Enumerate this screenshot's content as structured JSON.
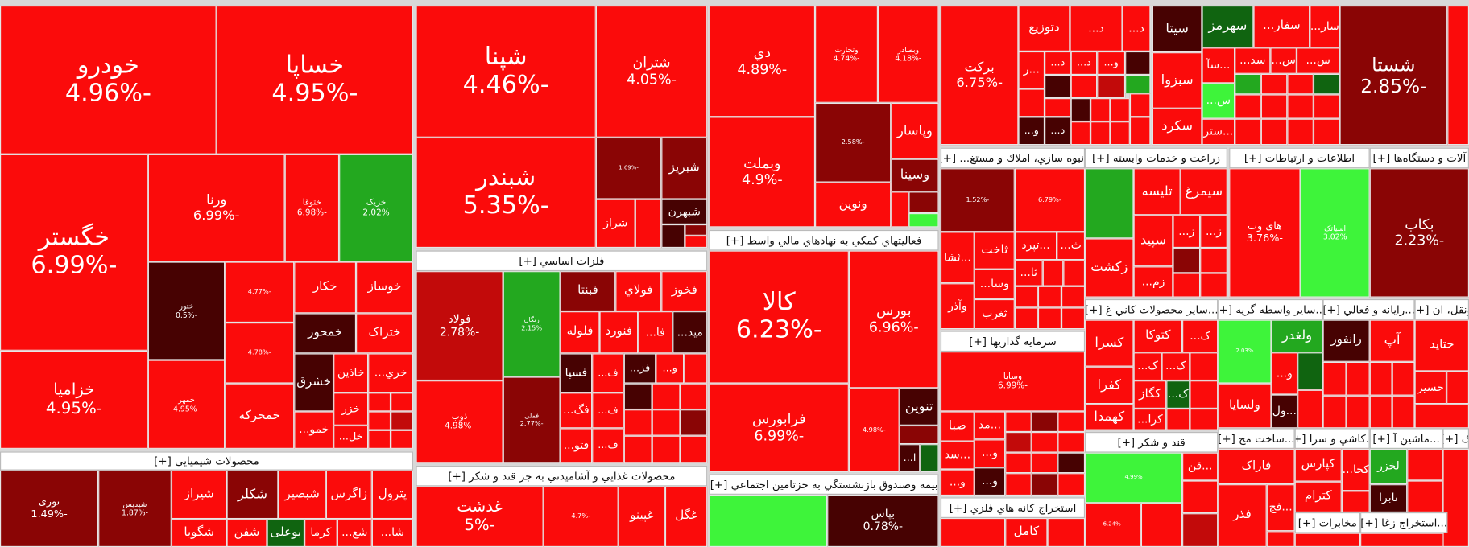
{
  "sectors": [
    {
      "tiles": [
        {
          "name": "خودرو",
          "change": "-4.96%"
        },
        {
          "name": "خساپا",
          "change": "-4.95%"
        },
        {
          "name": "خگستر",
          "change": "-6.99%"
        },
        {
          "name": "خزامیا",
          "change": "-4.95%"
        },
        {
          "name": "ورنا",
          "change": "-6.99%"
        },
        {
          "name": "ختوقا",
          "change": "-6.98%"
        },
        {
          "name": "خزیک",
          "change": "2.02%"
        },
        {
          "name": "ختور",
          "change": "-0.5%"
        },
        {
          "name": "خمهر",
          "change": "-4.95%"
        },
        {
          "change": "-4.77%"
        },
        {
          "change": "-4.78%"
        },
        {
          "name": "خکار"
        },
        {
          "name": "خوساز"
        },
        {
          "name": "خمحور"
        },
        {
          "name": "ختراک"
        },
        {
          "name": "خشرق"
        },
        {
          "name": "خاذین"
        },
        {
          "name": "خري..."
        },
        {
          "name": "خمو..."
        },
        {
          "name": "خزر"
        },
        {
          "name": "خل..."
        },
        {
          "name": "خمحرکه"
        }
      ]
    },
    {
      "title": "محصولات شيميايي [+]",
      "tiles": [
        {
          "name": "نوری",
          "change": "-1.49%"
        },
        {
          "name": "شپدیس",
          "change": "-1.87%"
        },
        {
          "name": "شیراز"
        },
        {
          "name": "شکلر"
        },
        {
          "name": "شبصیر"
        },
        {
          "name": "زاگرس"
        },
        {
          "name": "پترول"
        },
        {
          "name": "شگویا"
        },
        {
          "name": "شفن"
        },
        {
          "name": "بوعلی"
        },
        {
          "name": "کرما"
        },
        {
          "name": "شع..."
        },
        {
          "name": "شا..."
        }
      ]
    },
    {
      "tiles": [
        {
          "name": "شپنا",
          "change": "-4.46%"
        },
        {
          "name": "شتران",
          "change": "-4.05%"
        },
        {
          "name": "شبندر",
          "change": "-5.35%"
        },
        {
          "change": "-1.69%"
        },
        {
          "name": "شبریز"
        },
        {
          "name": "شراز"
        },
        {
          "name": "شبهرن"
        }
      ]
    },
    {
      "title": "فلزات اساسي [+]",
      "tiles": [
        {
          "name": "فولاد",
          "change": "-2.78%"
        },
        {
          "name": "ذوب",
          "change": "-4.98%"
        },
        {
          "name": "زنگان",
          "change": "2.15%"
        },
        {
          "name": "فملی",
          "change": "-2.77%"
        },
        {
          "name": "فبنتا"
        },
        {
          "name": "فولاي"
        },
        {
          "name": "فخوز"
        },
        {
          "name": "فلوله"
        },
        {
          "name": "فنورد"
        },
        {
          "name": "فا..."
        },
        {
          "name": "مید..."
        },
        {
          "name": "فسپا"
        },
        {
          "name": "ف..."
        },
        {
          "name": "فز..."
        },
        {
          "name": "و..."
        },
        {
          "name": "فگ..."
        },
        {
          "name": "ف..."
        },
        {
          "name": "فتو..."
        },
        {
          "name": "ف..."
        }
      ]
    },
    {
      "title": "محصولات غذايي و آشاميدني به جز قند و شكر [+]",
      "tiles": [
        {
          "name": "غدشت",
          "change": "-5%"
        },
        {
          "change": "-4.7%"
        },
        {
          "name": "غپینو"
        },
        {
          "name": "غگل"
        }
      ]
    },
    {
      "tiles": [
        {
          "name": "دي",
          "change": "-4.89%"
        },
        {
          "name": "وتجارت",
          "change": "-4.74%"
        },
        {
          "name": "وبصادر",
          "change": "-4.18%"
        },
        {
          "name": "وبملت",
          "change": "-4.9%"
        },
        {
          "change": "-2.58%"
        },
        {
          "name": "وپاسار"
        },
        {
          "name": "وسینا"
        },
        {
          "name": "ونوین"
        }
      ]
    },
    {
      "title": "فعاليتهاي كمكي به نهادهاي مالي واسط [+]",
      "tiles": [
        {
          "name": "کالا",
          "change": "-6.23%"
        },
        {
          "name": "بورس",
          "change": "-6.96%"
        },
        {
          "name": "فرابورس",
          "change": "-6.99%"
        },
        {
          "change": "-4.98%"
        },
        {
          "name": "تنوین"
        },
        {
          "name": "ا..."
        }
      ]
    },
    {
      "title": "بيمه وصندوق بازنشستگي به جزتامين اجتماعي [+]",
      "tiles": [
        {
          "name": "بپاس",
          "change": "-0.78%"
        }
      ]
    },
    {
      "tiles": [
        {
          "name": "برکت",
          "change": "-6.75%"
        },
        {
          "name": "دتوزیع"
        },
        {
          "name": "د..."
        },
        {
          "name": "د..."
        },
        {
          "name": "...ر"
        },
        {
          "name": "د..."
        },
        {
          "name": "د..."
        },
        {
          "name": "و..."
        },
        {
          "name": "و..."
        },
        {
          "name": "د..."
        }
      ]
    },
    {
      "title": "انبوه سازي، املاك و مستغ... [+]",
      "tiles": [
        {
          "change": "-1.52%"
        },
        {
          "change": "-6.79%"
        },
        {
          "name": "ثاخت"
        },
        {
          "name": "...تپرد"
        },
        {
          "name": "ث..."
        },
        {
          "name": "ثا..."
        },
        {
          "name": "...ثشا"
        },
        {
          "name": "وسا..."
        },
        {
          "name": "ثغرب"
        },
        {
          "name": "وآذر"
        }
      ]
    },
    {
      "title": "سرمايه گذاريها [+]",
      "tiles": [
        {
          "name": "وسایا",
          "change": "-6.99%"
        },
        {
          "name": "صبا"
        },
        {
          "name": "...مد"
        },
        {
          "name": "و..."
        },
        {
          "name": "...سد"
        },
        {
          "name": "و..."
        },
        {
          "name": "و..."
        }
      ]
    },
    {
      "title": "استخراج كانه هاي فلزي [+]",
      "tiles": [
        {
          "name": "کامل"
        }
      ]
    },
    {
      "title": "زراعت و خدمات وابسته [+]",
      "tiles": [
        {
          "name": "تلیسه"
        },
        {
          "name": "سیمرغ"
        },
        {
          "name": "زکشت"
        },
        {
          "name": "سپید"
        },
        {
          "name": "ز..."
        },
        {
          "name": "ز..."
        },
        {
          "name": "زم..."
        }
      ]
    },
    {
      "title": "...سایر محصولات كاني غ [+]",
      "tiles": [
        {
          "name": "کسرا"
        },
        {
          "name": "کتوکا"
        },
        {
          "name": "ک..."
        },
        {
          "name": "ک..."
        },
        {
          "name": "ک..."
        },
        {
          "name": "کفرا"
        },
        {
          "name": "کگاز"
        },
        {
          "name": "ک..."
        },
        {
          "name": "کهمدا"
        },
        {
          "name": "کرا..."
        }
      ]
    },
    {
      "title": "قند و شكر [+]",
      "tiles": [
        {
          "change": "4.99%"
        },
        {
          "name": "...قن"
        },
        {
          "change": "-6.24%"
        }
      ]
    },
    {
      "tiles": [
        {
          "name": "سیتا"
        },
        {
          "name": "سهرمز"
        },
        {
          "name": "سفار..."
        },
        {
          "name": "سار..."
        },
        {
          "name": "سبزوا"
        },
        {
          "name": "...سآ"
        },
        {
          "name": "س..."
        },
        {
          "name": "سد..."
        },
        {
          "name": "س..."
        },
        {
          "name": "س..."
        },
        {
          "name": "سکرد"
        },
        {
          "name": "...ستر"
        }
      ]
    },
    {
      "title": "اطلاعات و ارتباطات [+]",
      "tiles": [
        {
          "name": "های وب",
          "change": "-3.76%"
        },
        {
          "name": "اسیاتک",
          "change": "3.02%"
        }
      ]
    },
    {
      "title": "...سایر واسطه گریه [+]",
      "tiles": [
        {
          "change": "2.03%"
        },
        {
          "name": "ولغدر"
        },
        {
          "name": "و..."
        },
        {
          "name": "ولسایا"
        },
        {
          "name": "...ول"
        }
      ]
    },
    {
      "title": "...ساخت مح [+]",
      "tiles": [
        {
          "name": "فاراک"
        },
        {
          "name": "فذر"
        },
        {
          "name": "...فج"
        }
      ]
    },
    {
      "title": "...كاشي و سرا [+]",
      "tiles": [
        {
          "name": "کپارس"
        },
        {
          "name": "کترام"
        },
        {
          "name": "کحا..."
        }
      ]
    },
    {
      "title": "مخابرات [+]",
      "tiles": []
    },
    {
      "tiles": [
        {
          "name": "شستا",
          "change": "-2.85%"
        }
      ]
    },
    {
      "title": "آلات و دستگاه‌ها [+]",
      "tiles": [
        {
          "name": "بکاب",
          "change": "-2.23%"
        }
      ]
    },
    {
      "title": "...رايانه و فعالي [+]",
      "tiles": [
        {
          "name": "رانفور"
        },
        {
          "name": "آپ"
        }
      ]
    },
    {
      "title": "ونقل، ان [+]",
      "tiles": [
        {
          "name": "حتاید"
        },
        {
          "name": "حسیر"
        }
      ]
    },
    {
      "title": "...ماشين آ [+]",
      "tiles": [
        {
          "name": "لخزر"
        },
        {
          "name": "تابرا"
        }
      ]
    },
    {
      "title": "...استخراج زغا [+]",
      "tiles": []
    },
    {
      "title": "ک [+]",
      "tiles": []
    }
  ]
}
